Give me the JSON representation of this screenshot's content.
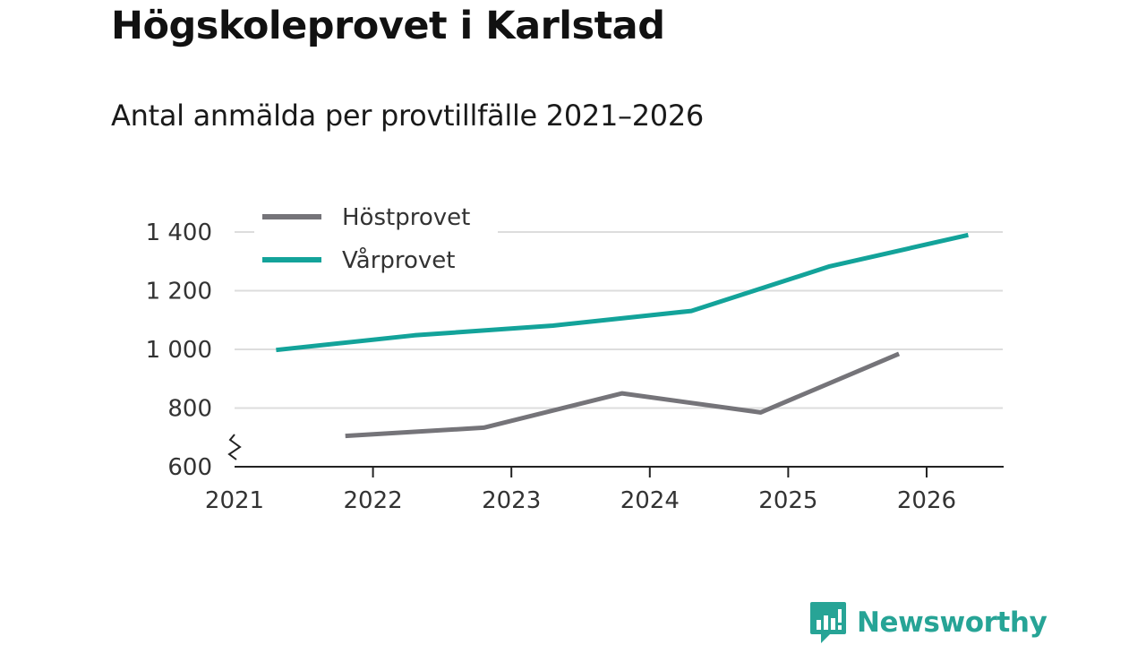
{
  "title": "Högskoleprovet i Karlstad",
  "subtitle": "Antal anmälda per provtillfälle 2021–2026",
  "brand": {
    "name": "Newsworthy",
    "icon": "newsworthy-logo-icon"
  },
  "colors": {
    "hostprovet": "#757479",
    "varprovet": "#13a39a",
    "gridline": "#dddddd",
    "axis": "#222222",
    "brand": "#27a496"
  },
  "chart_data": {
    "type": "line",
    "title": "Högskoleprovet i Karlstad",
    "subtitle": "Antal anmälda per provtillfälle 2021–2026",
    "xlabel": "",
    "ylabel": "",
    "xlim": [
      2021,
      2026.55
    ],
    "ylim": [
      600,
      1400
    ],
    "y_axis_break": true,
    "y_ticks": [
      600,
      800,
      1000,
      1200,
      1400
    ],
    "y_tick_labels": [
      "600",
      "800",
      "1 000",
      "1 200",
      "1 400"
    ],
    "x_ticks": [
      2021,
      2022,
      2023,
      2024,
      2025,
      2026
    ],
    "x_tick_labels": [
      "2021",
      "2022",
      "2023",
      "2024",
      "2025",
      "2026"
    ],
    "grid": true,
    "legend_position": "top-left",
    "series": [
      {
        "name": "Höstprovet",
        "color": "#757479",
        "x": [
          2021.8,
          2022.8,
          2023.8,
          2024.8,
          2025.8
        ],
        "values": [
          705,
          733,
          850,
          785,
          985
        ]
      },
      {
        "name": "Vårprovet",
        "color": "#13a39a",
        "x": [
          2021.3,
          2022.3,
          2023.3,
          2024.3,
          2025.3,
          2026.3
        ],
        "values": [
          998,
          1048,
          1081,
          1131,
          1283,
          1390
        ]
      }
    ]
  }
}
